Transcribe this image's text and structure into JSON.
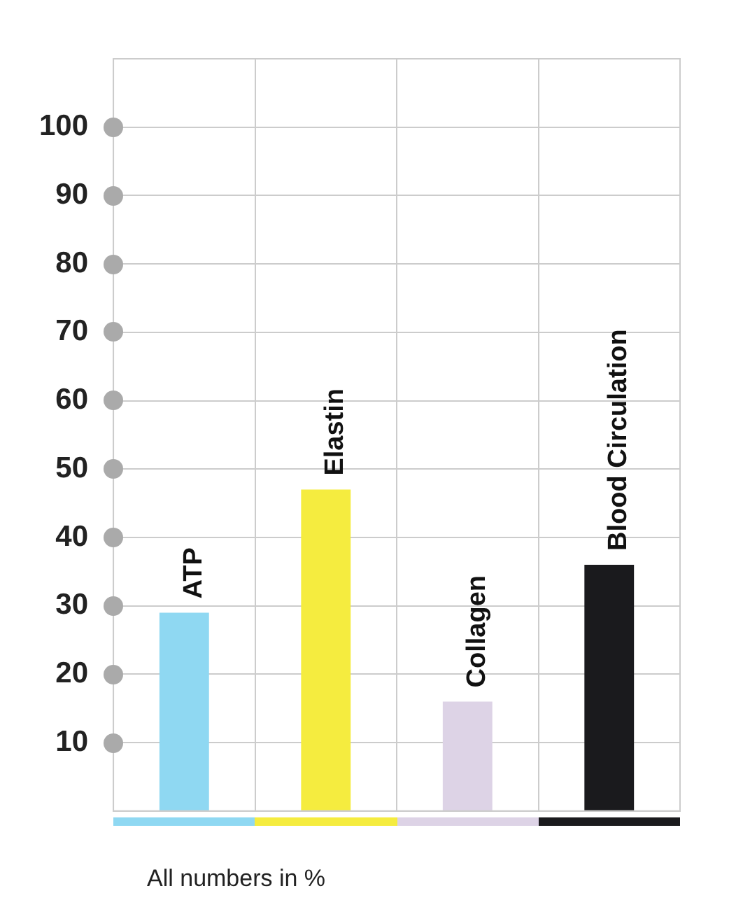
{
  "chart_data": {
    "type": "bar",
    "categories": [
      "ATP",
      "Elastin",
      "Collagen",
      "Blood Circulation"
    ],
    "values": [
      29,
      47,
      16,
      36
    ],
    "colors": [
      "#8fd8f2",
      "#f5ec3f",
      "#ddd3e6",
      "#1a1a1d"
    ],
    "ylim": [
      0,
      110
    ],
    "yticks": [
      10,
      20,
      30,
      40,
      50,
      60,
      70,
      80,
      90,
      100
    ],
    "grid": true,
    "legend": false,
    "tick_labels": "y",
    "annotations": [
      "All numbers in %"
    ]
  }
}
